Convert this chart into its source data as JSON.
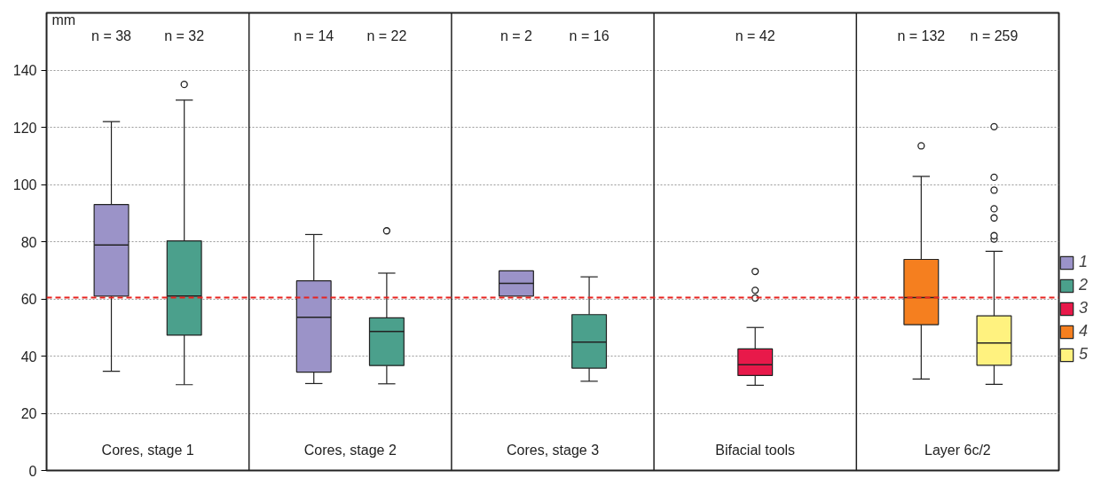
{
  "chart_data": {
    "type": "box",
    "ylabel": "mm",
    "categories": [
      "Cores, stage 1",
      "Cores, stage 2",
      "Cores, stage 3",
      "Bifacial tools",
      "Layer 6c/2"
    ],
    "ylim": [
      0,
      160
    ],
    "yticks": [
      0,
      20,
      40,
      60,
      80,
      100,
      120,
      140
    ],
    "grid": "y",
    "legend": "right",
    "annotations": [
      "n = 38",
      "n = 32",
      "n = 14",
      "n = 22",
      "n = 2",
      "n = 16",
      "n = 42",
      "n = 132",
      "n = 259"
    ],
    "ref_lines": [
      {
        "axis": "y",
        "value": 60.5,
        "label": null,
        "color": "#e8231f",
        "line_style": "dashed"
      }
    ],
    "series": [
      {
        "name": "1",
        "color": "#9b93c8",
        "boxes": [
          {
            "low": 34.7,
            "q1": 61,
            "median": 78.8,
            "q3": 93,
            "high": 122
          },
          {
            "low": 30.4,
            "q1": 34.4,
            "median": 53.6,
            "q3": 66.3,
            "high": 82.5
          },
          {
            "low": 61,
            "q1": 61,
            "median": 65.4,
            "q3": 69.8,
            "high": 69.8
          },
          null,
          null
        ]
      },
      {
        "name": "2",
        "color": "#4ba08c",
        "boxes": [
          {
            "low": 30,
            "q1": 47.3,
            "median": 61,
            "q3": 80.3,
            "high": 129.5,
            "outliers": [
              135
            ]
          },
          {
            "low": 30.3,
            "q1": 36.7,
            "median": 48.6,
            "q3": 53.4,
            "high": 69,
            "outliers": [
              83.8
            ]
          },
          {
            "low": 31.2,
            "q1": 35.8,
            "median": 44.9,
            "q3": 54.5,
            "high": 67.7
          },
          null,
          null
        ]
      },
      {
        "name": "3",
        "color": "#e8194a",
        "boxes": [
          null,
          null,
          null,
          {
            "low": 29.8,
            "q1": 33.2,
            "median": 37,
            "q3": 42.5,
            "high": 50,
            "outliers": [
              60.3,
              63,
              69.6
            ]
          },
          null
        ]
      },
      {
        "name": "4",
        "color": "#f57f1f",
        "boxes": [
          null,
          null,
          null,
          null,
          {
            "low": 32,
            "q1": 51,
            "median": 60.5,
            "q3": 73.8,
            "high": 102.8,
            "outliers": [
              113.5
            ]
          }
        ]
      },
      {
        "name": "5",
        "color": "#fff27f",
        "boxes": [
          null,
          null,
          null,
          null,
          {
            "low": 30.1,
            "q1": 36.8,
            "median": 44.6,
            "q3": 54.1,
            "high": 76.6,
            "outliers": [
              80.9,
              82.1,
              88.3,
              91.5,
              98,
              102.5,
              120.2
            ]
          }
        ]
      }
    ]
  }
}
